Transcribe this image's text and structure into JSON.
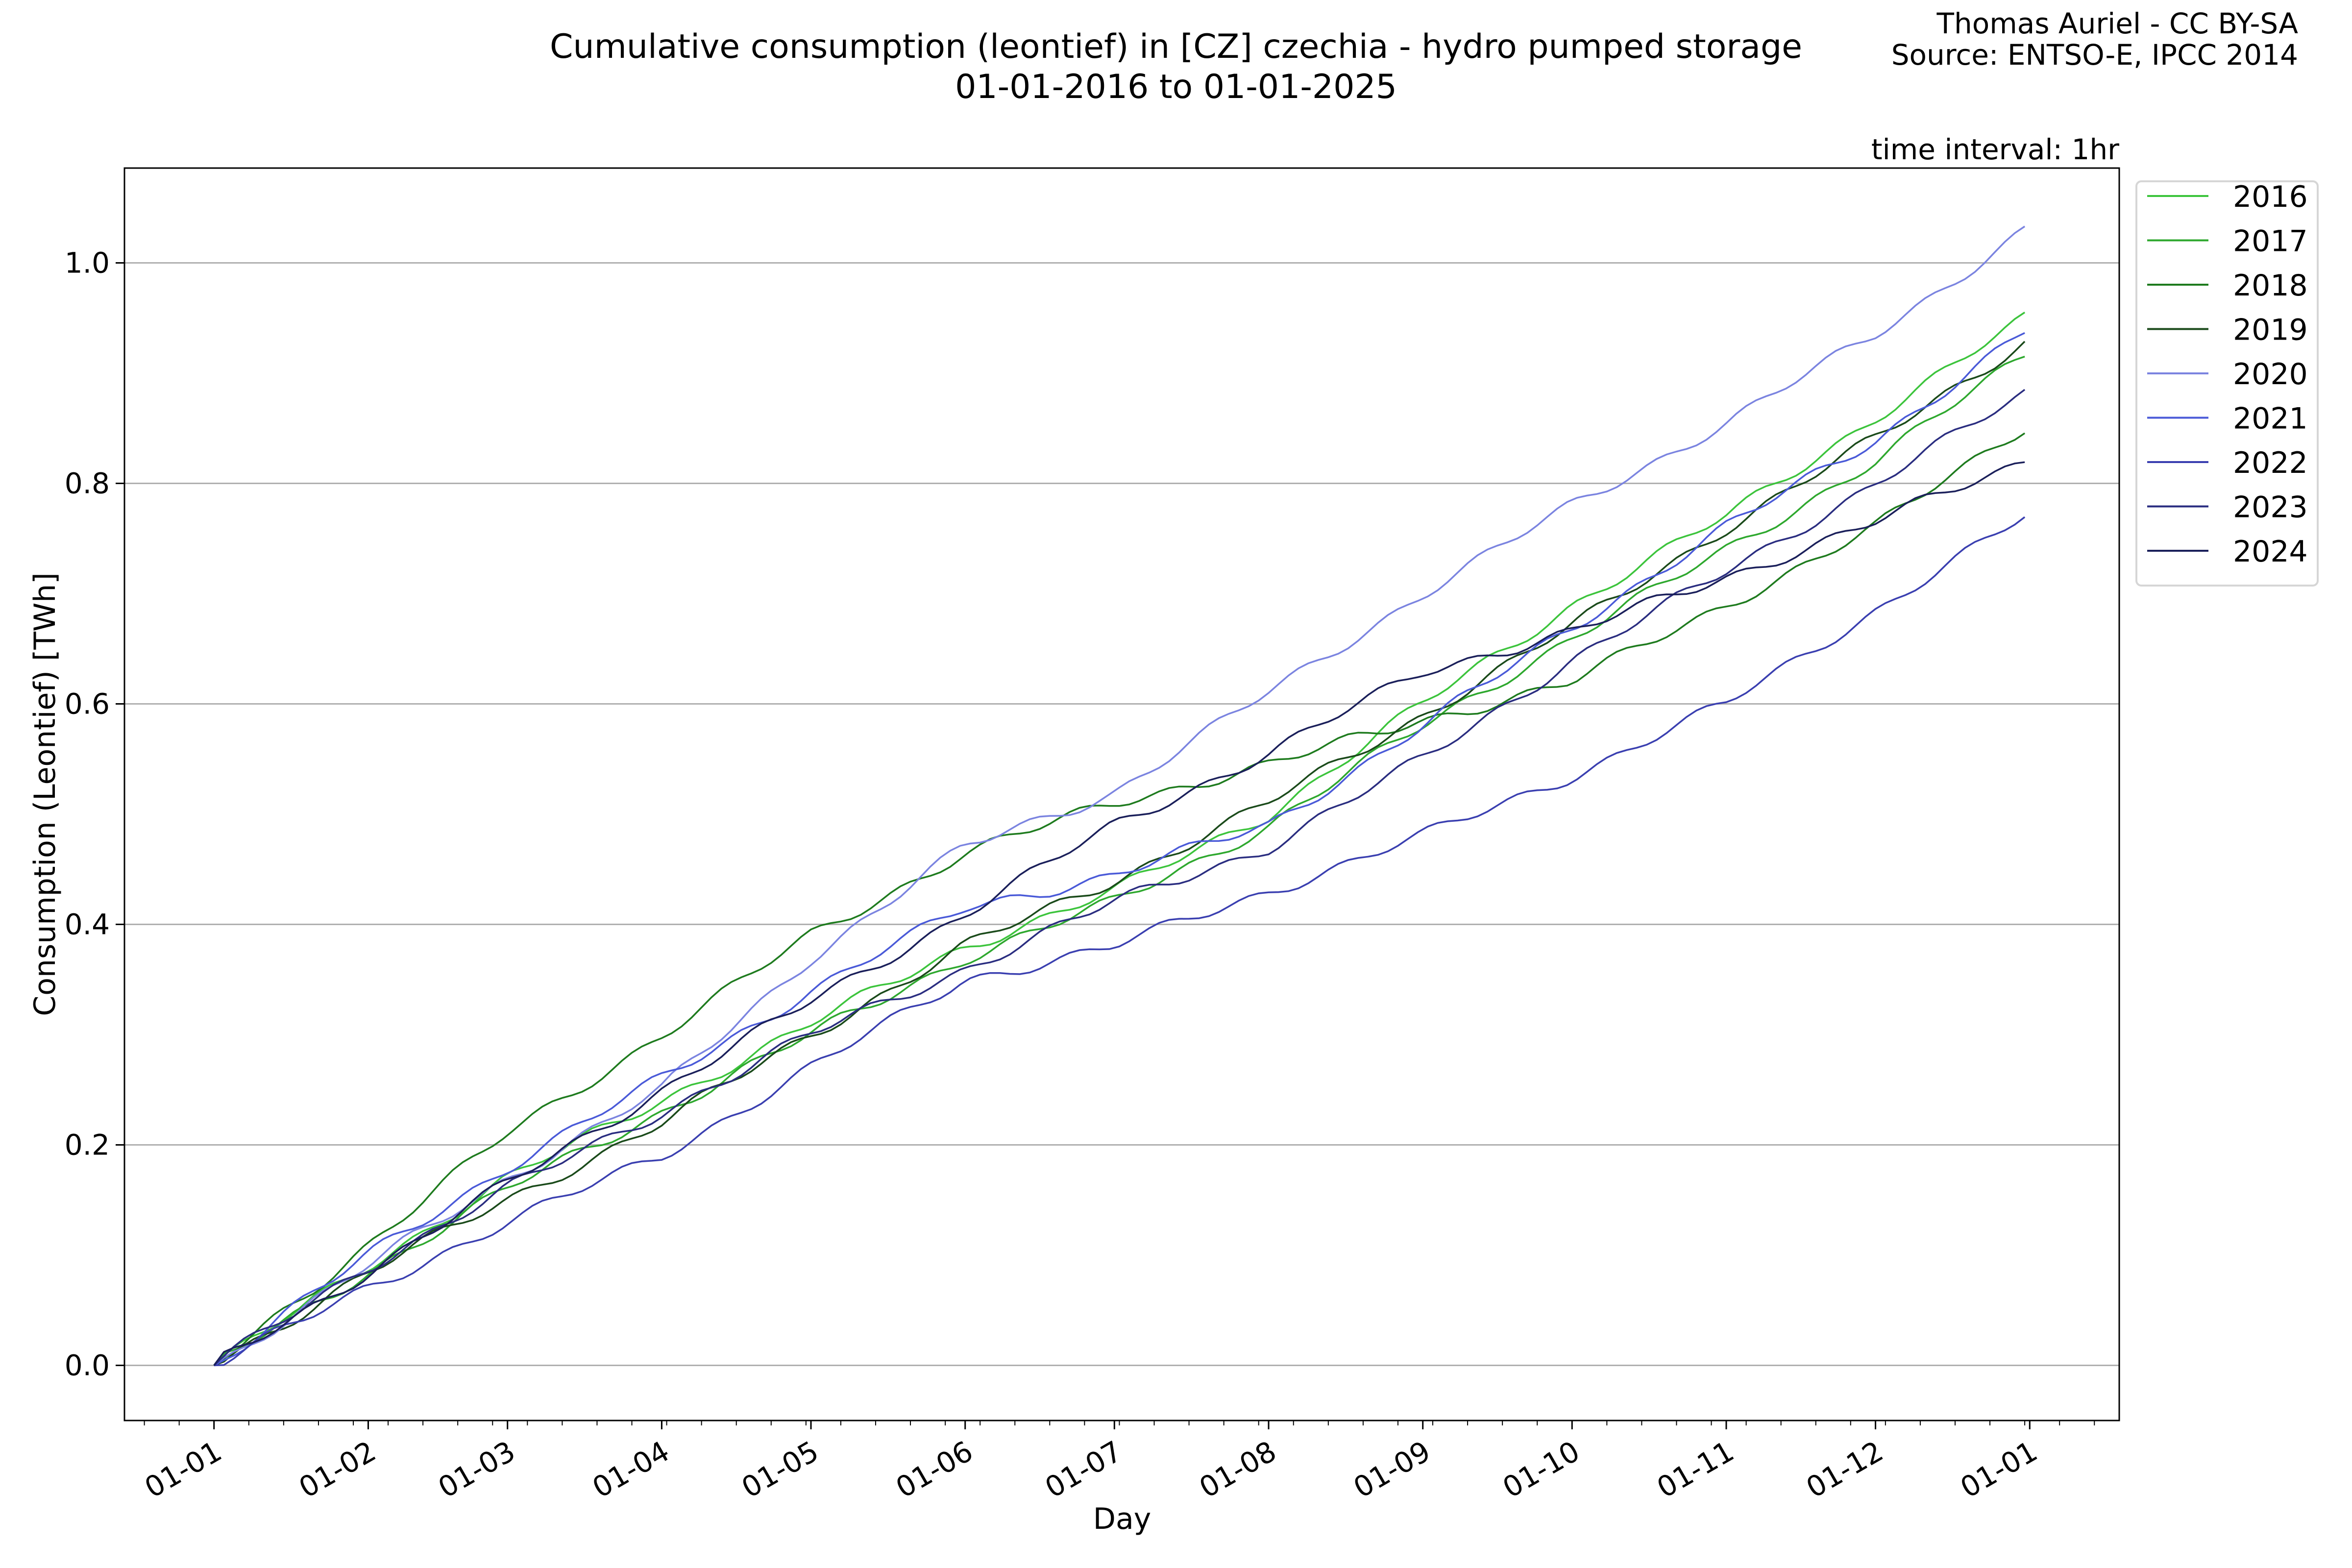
{
  "credit": [
    "Thomas Auriel - CC BY-SA",
    "Source: ENTSO-E, IPCC 2014"
  ],
  "chart_data": {
    "type": "line",
    "title": "Cumulative consumption (leontief) in [CZ] czechia - hydro pumped storage",
    "subtitle": "01-01-2016 to 01-01-2025",
    "annotation": "time interval: 1hr",
    "xlabel": "Day",
    "ylabel": "Consumption (Leontief) [TWh]",
    "x": [
      "01-01",
      "01-02",
      "01-03",
      "01-04",
      "01-05",
      "01-06",
      "01-07",
      "01-08",
      "01-09",
      "01-10",
      "01-11",
      "01-12",
      "01-01"
    ],
    "xticks": [
      "01-01",
      "01-02",
      "01-03",
      "01-04",
      "01-05",
      "01-06",
      "01-07",
      "01-08",
      "01-09",
      "01-10",
      "01-11",
      "01-12",
      "01-01"
    ],
    "yticks": [
      "0.0",
      "0.2",
      "0.4",
      "0.6",
      "0.8",
      "1.0"
    ],
    "ylim": [
      -0.05,
      1.086
    ],
    "grid": "horizontal",
    "legend_position": "outside-top-right",
    "series": [
      {
        "name": "2016",
        "color": "#3cc43c",
        "values": [
          0,
          0.09,
          0.17,
          0.24,
          0.31,
          0.38,
          0.43,
          0.5,
          0.6,
          0.69,
          0.77,
          0.86,
          0.952
        ]
      },
      {
        "name": "2017",
        "color": "#2ea82e",
        "values": [
          0,
          0.085,
          0.16,
          0.23,
          0.3,
          0.37,
          0.42,
          0.49,
          0.58,
          0.66,
          0.74,
          0.82,
          0.92
        ]
      },
      {
        "name": "2018",
        "color": "#1e7b1e",
        "values": [
          0,
          0.11,
          0.21,
          0.3,
          0.39,
          0.465,
          0.51,
          0.545,
          0.585,
          0.62,
          0.69,
          0.76,
          0.855
        ]
      },
      {
        "name": "2019",
        "color": "#1a4a1a",
        "values": [
          0,
          0.085,
          0.15,
          0.22,
          0.3,
          0.38,
          0.44,
          0.51,
          0.59,
          0.67,
          0.76,
          0.84,
          0.932
        ]
      },
      {
        "name": "2020",
        "color": "#7b84e0",
        "values": [
          0,
          0.09,
          0.17,
          0.25,
          0.37,
          0.47,
          0.52,
          0.61,
          0.7,
          0.78,
          0.855,
          0.935,
          1.033
        ]
      },
      {
        "name": "2021",
        "color": "#4a5ad8",
        "values": [
          0,
          0.1,
          0.18,
          0.26,
          0.34,
          0.415,
          0.445,
          0.49,
          0.58,
          0.67,
          0.76,
          0.84,
          0.94
        ]
      },
      {
        "name": "2022",
        "color": "#3a3fb0",
        "values": [
          0,
          0.07,
          0.13,
          0.19,
          0.27,
          0.35,
          0.38,
          0.43,
          0.48,
          0.535,
          0.6,
          0.685,
          0.772
        ]
      },
      {
        "name": "2023",
        "color": "#2a2d80",
        "values": [
          0,
          0.09,
          0.16,
          0.23,
          0.3,
          0.36,
          0.42,
          0.47,
          0.55,
          0.64,
          0.72,
          0.8,
          0.884
        ]
      },
      {
        "name": "2024",
        "color": "#1a1f5a",
        "values": [
          0,
          0.085,
          0.165,
          0.25,
          0.33,
          0.41,
          0.49,
          0.555,
          0.63,
          0.665,
          0.715,
          0.765,
          0.822
        ]
      }
    ]
  }
}
